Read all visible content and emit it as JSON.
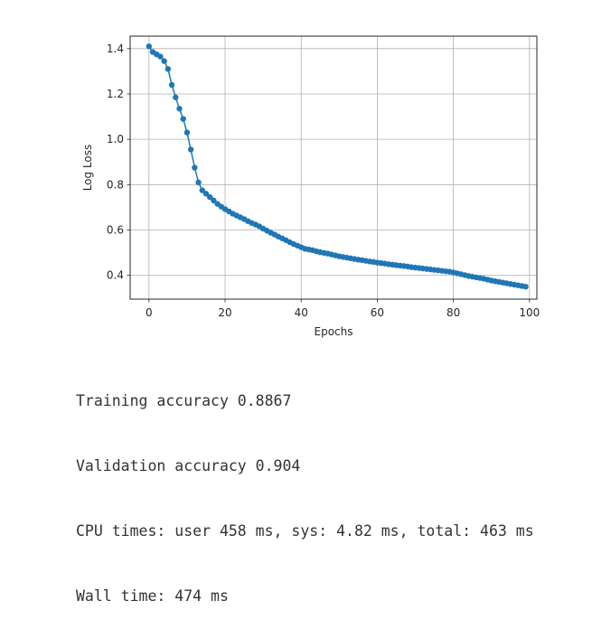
{
  "chart_data": {
    "type": "line",
    "title": "",
    "xlabel": "Epochs",
    "ylabel": "Log Loss",
    "xlim": [
      -4.95,
      101.95
    ],
    "ylim": [
      0.295,
      1.455
    ],
    "xticks": [
      0,
      20,
      40,
      60,
      80,
      100
    ],
    "yticks": [
      0.4,
      0.6,
      0.8,
      1.0,
      1.2,
      1.4
    ],
    "xtick_labels": [
      "0",
      "20",
      "40",
      "60",
      "80",
      "100"
    ],
    "ytick_labels": [
      "0.4",
      "0.6",
      "0.8",
      "1.0",
      "1.2",
      "1.4"
    ],
    "grid": true,
    "marker": "circle",
    "color": "#1f77b4",
    "series": [
      {
        "x": [
          0,
          1,
          2,
          3,
          4,
          5,
          6,
          7,
          8,
          9,
          10,
          11,
          12,
          13,
          14,
          15,
          16,
          17,
          18,
          19,
          20,
          21,
          22,
          23,
          24,
          25,
          26,
          27,
          28,
          29,
          30,
          31,
          32,
          33,
          34,
          35,
          36,
          37,
          38,
          39,
          40,
          41,
          42,
          43,
          44,
          45,
          46,
          47,
          48,
          49,
          50,
          51,
          52,
          53,
          54,
          55,
          56,
          57,
          58,
          59,
          60,
          61,
          62,
          63,
          64,
          65,
          66,
          67,
          68,
          69,
          70,
          71,
          72,
          73,
          74,
          75,
          76,
          77,
          78,
          79,
          80,
          81,
          82,
          83,
          84,
          85,
          86,
          87,
          88,
          89,
          90,
          91,
          92,
          93,
          94,
          95,
          96,
          97,
          98,
          99
        ],
        "y": [
          1.41,
          1.385,
          1.375,
          1.365,
          1.345,
          1.31,
          1.24,
          1.185,
          1.135,
          1.09,
          1.03,
          0.955,
          0.875,
          0.81,
          0.775,
          0.76,
          0.745,
          0.73,
          0.715,
          0.703,
          0.692,
          0.682,
          0.672,
          0.664,
          0.656,
          0.648,
          0.639,
          0.631,
          0.624,
          0.616,
          0.606,
          0.597,
          0.588,
          0.58,
          0.571,
          0.563,
          0.555,
          0.546,
          0.538,
          0.531,
          0.524,
          0.517,
          0.514,
          0.511,
          0.506,
          0.502,
          0.499,
          0.496,
          0.492,
          0.488,
          0.484,
          0.481,
          0.478,
          0.475,
          0.472,
          0.469,
          0.467,
          0.464,
          0.461,
          0.459,
          0.456,
          0.454,
          0.452,
          0.449,
          0.447,
          0.445,
          0.443,
          0.441,
          0.439,
          0.436,
          0.434,
          0.432,
          0.43,
          0.428,
          0.426,
          0.424,
          0.422,
          0.42,
          0.418,
          0.416,
          0.413,
          0.409,
          0.405,
          0.401,
          0.397,
          0.394,
          0.391,
          0.388,
          0.385,
          0.381,
          0.377,
          0.374,
          0.371,
          0.368,
          0.365,
          0.362,
          0.359,
          0.356,
          0.353,
          0.35
        ]
      }
    ]
  },
  "output": {
    "lines": [
      "Training accuracy 0.8867",
      "Validation accuracy 0.904",
      "CPU times: user 458 ms, sys: 4.82 ms, total: 463 ms",
      "Wall time: 474 ms"
    ]
  }
}
